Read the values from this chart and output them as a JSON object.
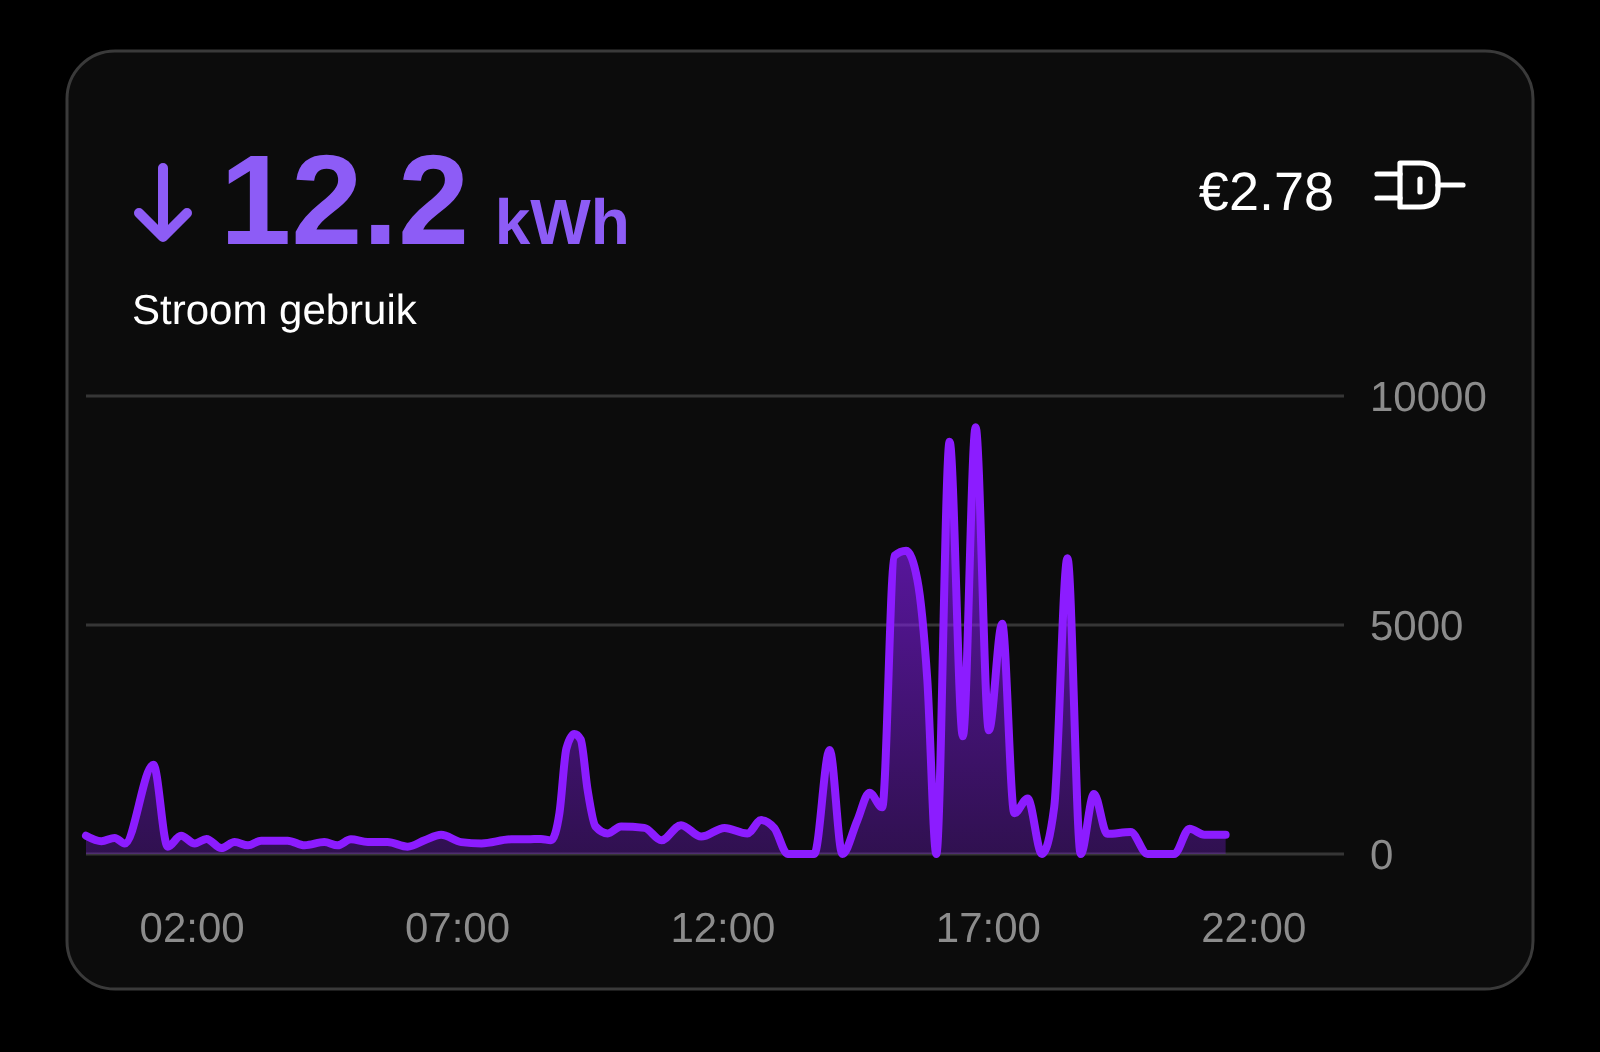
{
  "chart_data": {
    "type": "area",
    "title": "12.2 kWh",
    "subtitle": "Stroom gebruik",
    "annotations": [
      "€2.78"
    ],
    "x": [
      0,
      0.29,
      0.54,
      0.73,
      1.27,
      1.54,
      1.79,
      2.05,
      2.27,
      2.55,
      2.8,
      3.05,
      3.3,
      3.8,
      4.12,
      4.49,
      4.74,
      4.99,
      5.31,
      5.68,
      6.06,
      6.38,
      6.69,
      7.07,
      7.45,
      8.01,
      8.32,
      8.57,
      8.76,
      8.92,
      9.05,
      9.2,
      9.32,
      9.45,
      9.6,
      9.83,
      10.08,
      10.52,
      10.84,
      11.21,
      11.59,
      12.03,
      12.46,
      12.72,
      12.97,
      13.22,
      13.72,
      14.01,
      14.25,
      14.53,
      14.76,
      15,
      15.23,
      15.45,
      15.66,
      15.85,
      16.02,
      16.27,
      16.52,
      16.76,
      17.01,
      17.26,
      17.49,
      17.74,
      18.01,
      18.24,
      18.49,
      18.74,
      18.99,
      19.24,
      19.68,
      20,
      20.5,
      20.79,
      21.07,
      21.47
    ],
    "series": [
      {
        "color": "#8c1cff",
        "values": [
          400,
          280,
          350,
          230,
          1950,
          160,
          400,
          230,
          330,
          130,
          260,
          190,
          290,
          290,
          190,
          260,
          190,
          320,
          260,
          260,
          160,
          300,
          420,
          260,
          230,
          320,
          320,
          330,
          300,
          900,
          2300,
          2620,
          2500,
          1400,
          600,
          450,
          600,
          570,
          300,
          630,
          380,
          570,
          450,
          740,
          560,
          0,
          0,
          2270,
          0,
          730,
          1340,
          1020,
          6510,
          6620,
          6000,
          3800,
          0,
          9000,
          2570,
          9320,
          2700,
          5030,
          890,
          1210,
          0,
          1020,
          6460,
          0,
          1310,
          440,
          480,
          0,
          0,
          550,
          420,
          420
        ]
      }
    ],
    "xlim": [
      0,
      23.7
    ],
    "xticks": [
      {
        "value": 2,
        "label": "02:00"
      },
      {
        "value": 7,
        "label": "07:00"
      },
      {
        "value": 12,
        "label": "12:00"
      },
      {
        "value": 17,
        "label": "17:00"
      },
      {
        "value": 22,
        "label": "22:00"
      }
    ],
    "ylim": [
      0,
      10000
    ],
    "yticks": [
      0,
      5000,
      10000
    ],
    "grid": "y"
  }
}
